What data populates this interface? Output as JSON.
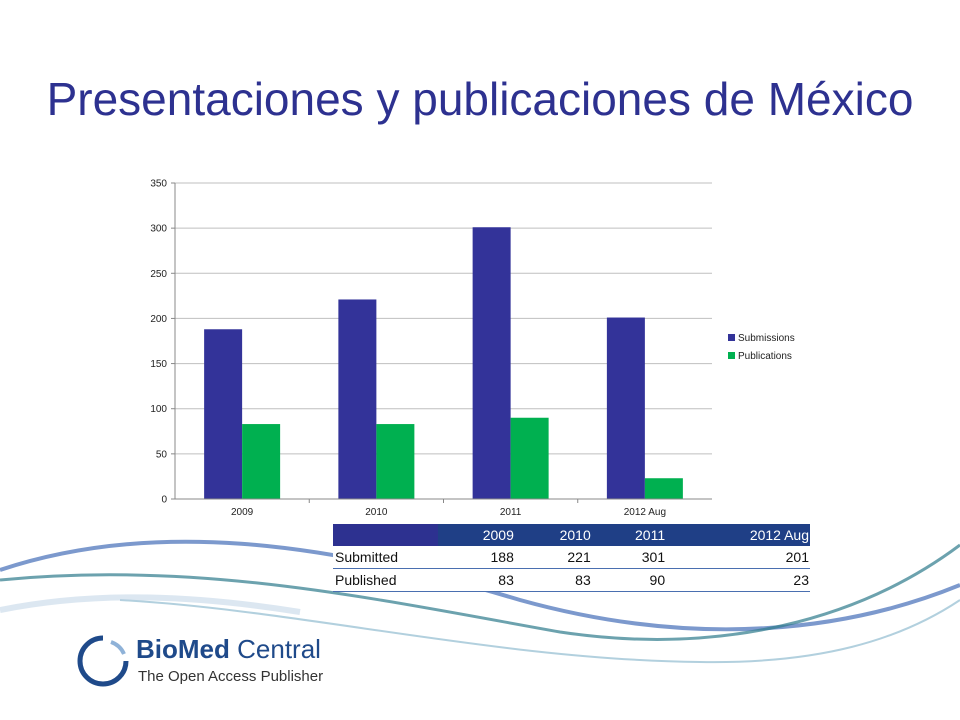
{
  "slide": {
    "title": "Presentaciones y publicaciones de México"
  },
  "colors": {
    "submissions": "#333399",
    "publications": "#00b050",
    "title": "#2d3190",
    "table_header": "#1f3f86"
  },
  "chart_data": {
    "type": "bar",
    "categories": [
      "2009",
      "2010",
      "2011",
      "2012 Aug"
    ],
    "series": [
      {
        "name": "Submissions",
        "values": [
          188,
          221,
          301,
          201
        ]
      },
      {
        "name": "Publications",
        "values": [
          83,
          83,
          90,
          23
        ]
      }
    ],
    "ylim": [
      0,
      350
    ],
    "yticks": [
      0,
      50,
      100,
      150,
      200,
      250,
      300,
      350
    ],
    "grid": true,
    "legend_position": "right"
  },
  "table": {
    "columns": [
      "2009",
      "2010",
      "2011",
      "2012 Aug"
    ],
    "rows": [
      {
        "label": "Submitted",
        "values": [
          "188",
          "221",
          "301",
          "201"
        ]
      },
      {
        "label": "Published",
        "values": [
          "83",
          "83",
          "90",
          "23"
        ]
      }
    ]
  },
  "logo": {
    "brand_bio": "Bio",
    "brand_med": "Med",
    "brand_central": "Central",
    "tagline": "The Open Access Publisher"
  }
}
